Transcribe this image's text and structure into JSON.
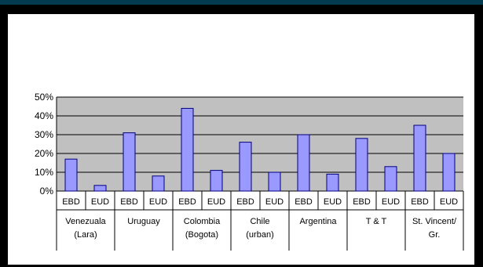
{
  "chart_data": {
    "type": "bar",
    "title": "",
    "xlabel": "",
    "ylabel": "",
    "ylim": [
      0,
      0.5
    ],
    "yticks": [
      {
        "value": 0.0,
        "label": "0%"
      },
      {
        "value": 0.1,
        "label": "10%"
      },
      {
        "value": 0.2,
        "label": "20%"
      },
      {
        "value": 0.3,
        "label": "30%"
      },
      {
        "value": 0.4,
        "label": "40%"
      },
      {
        "value": 0.5,
        "label": "50%"
      }
    ],
    "grid": true,
    "legend": "none",
    "colors": {
      "bar_fill": "#9999ff",
      "bar_stroke": "#000080",
      "plot_bg": "#c0c0c0",
      "gridline": "#000000"
    },
    "groups": [
      {
        "label_lines": [
          "Venezuala",
          "(Lara)"
        ],
        "categories": [
          "EBD",
          "EUD"
        ],
        "values": [
          0.17,
          0.03
        ]
      },
      {
        "label_lines": [
          "Uruguay"
        ],
        "categories": [
          "EBD",
          "EUD"
        ],
        "values": [
          0.31,
          0.08
        ]
      },
      {
        "label_lines": [
          "Colombia",
          "(Bogota)"
        ],
        "categories": [
          "EBD",
          "EUD"
        ],
        "values": [
          0.44,
          0.11
        ]
      },
      {
        "label_lines": [
          "Chile",
          "(urban)"
        ],
        "categories": [
          "EBD",
          "EUD"
        ],
        "values": [
          0.26,
          0.1
        ]
      },
      {
        "label_lines": [
          "Argentina"
        ],
        "categories": [
          "EBD",
          "EUD"
        ],
        "values": [
          0.3,
          0.09
        ]
      },
      {
        "label_lines": [
          "T & T"
        ],
        "categories": [
          "EBD",
          "EUD"
        ],
        "values": [
          0.28,
          0.13
        ]
      },
      {
        "label_lines": [
          "St. Vincent/",
          "Gr."
        ],
        "categories": [
          "EBD",
          "EUD"
        ],
        "values": [
          0.35,
          0.2
        ]
      }
    ]
  }
}
